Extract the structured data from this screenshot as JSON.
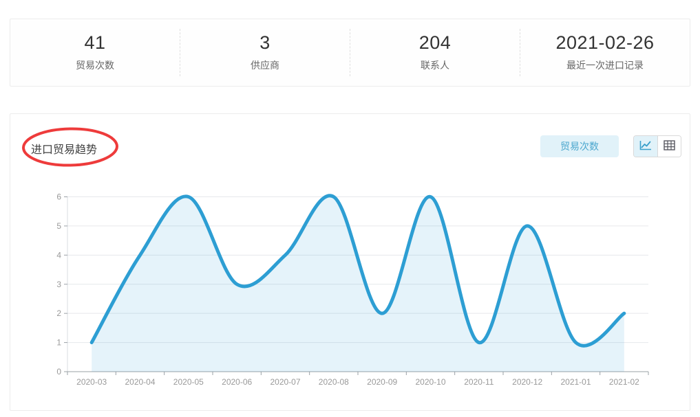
{
  "stats": {
    "items": [
      {
        "value": "41",
        "label": "贸易次数"
      },
      {
        "value": "3",
        "label": "供应商"
      },
      {
        "value": "204",
        "label": "联系人"
      },
      {
        "value": "2021-02-26",
        "label": "最近一次进口记录"
      }
    ]
  },
  "trend": {
    "title": "进口贸易趋势",
    "metric_button_label": "贸易次数",
    "view_toggle": {
      "options": [
        "line-chart",
        "table"
      ],
      "active": "line-chart"
    }
  },
  "chart_data": {
    "type": "area",
    "title": "进口贸易趋势",
    "categories": [
      "2020-03",
      "2020-04",
      "2020-05",
      "2020-06",
      "2020-07",
      "2020-08",
      "2020-09",
      "2020-10",
      "2020-11",
      "2020-12",
      "2021-01",
      "2021-02"
    ],
    "series": [
      {
        "name": "贸易次数",
        "values": [
          1,
          4,
          6,
          3,
          4,
          6,
          2,
          6,
          1,
          5,
          1,
          2
        ]
      }
    ],
    "xlabel": "",
    "ylabel": "",
    "ylim": [
      0,
      6
    ],
    "yticks": [
      0,
      1,
      2,
      3,
      4,
      5,
      6
    ],
    "grid": true,
    "smooth": true,
    "legend_position": "none",
    "line_color": "#2d9ed3",
    "area_opacity": 0.12,
    "grid_color": "#e6e8eb",
    "axis_line_color": "#9aa0a6",
    "tick_label_color": "#999999"
  },
  "annotation": {
    "type": "ellipse",
    "color": "#ee3b3b",
    "target": "进口贸易趋势"
  },
  "colors": {
    "metric_button_bg": "#e1f2f9",
    "metric_button_text": "#4ba7ce",
    "toggle_active_bg": "#e1f2f9",
    "toggle_icon_active": "#3aa0cb",
    "toggle_icon_inactive": "#55565e"
  }
}
